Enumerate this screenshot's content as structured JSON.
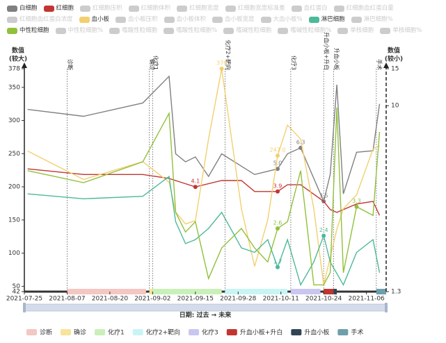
{
  "chart_data": {
    "type": "line",
    "ylabel": [
      "数值",
      "(较大)"
    ],
    "y2label": [
      "数值",
      "(较小)"
    ],
    "xlabel": "日期: 过去 → 未来",
    "xlim": [
      "2021-07-25",
      "2021-11-12"
    ],
    "xticks": [
      "2021-07-25",
      "2021-08-07",
      "2021-08-20",
      "2021-09-02",
      "2021-09-15",
      "2021-09-28",
      "2021-10-11",
      "2021-10-24",
      "2021-11-06"
    ],
    "ylim": [
      42,
      378
    ],
    "yticks": [
      42,
      50,
      100,
      150,
      200,
      250,
      300,
      350,
      378
    ],
    "y2lim": [
      1.3,
      15
    ],
    "y2ticks": [
      1.3,
      10,
      15
    ],
    "y2log": true,
    "series": [
      {
        "name": "白细胞",
        "color": "#808080",
        "selected": true,
        "axis": "y2",
        "x": [
          "2021-07-26",
          "2021-08-12",
          "2021-08-30",
          "2021-09-07",
          "2021-09-09",
          "2021-09-12",
          "2021-09-15",
          "2021-09-19",
          "2021-09-23",
          "2021-10-03",
          "2021-10-10",
          "2021-10-13",
          "2021-10-17",
          "2021-10-24",
          "2021-10-26",
          "2021-10-28",
          "2021-10-30",
          "2021-11-03",
          "2021-11-08",
          "2021-11-10"
        ],
        "values": [
          9.6,
          8.9,
          10.3,
          13.8,
          5.9,
          5.4,
          5.7,
          4.6,
          5.9,
          4.7,
          5.0,
          5.9,
          6.3,
          3.5,
          4.7,
          12.6,
          3.8,
          6.0,
          6.1,
          10.2
        ],
        "value_labels": [
          null,
          null,
          null,
          null,
          null,
          null,
          null,
          null,
          null,
          null,
          "5.0",
          null,
          "6.3",
          "3.5",
          null,
          null,
          null,
          null,
          null,
          null
        ]
      },
      {
        "name": "红细胞",
        "color": "#c23531",
        "selected": true,
        "axis": "y2",
        "x": [
          "2021-07-26",
          "2021-08-12",
          "2021-08-30",
          "2021-09-07",
          "2021-09-15",
          "2021-09-23",
          "2021-09-29",
          "2021-10-03",
          "2021-10-10",
          "2021-10-13",
          "2021-10-17",
          "2021-10-24",
          "2021-10-26",
          "2021-10-28",
          "2021-10-30",
          "2021-11-03",
          "2021-11-08",
          "2021-11-10"
        ],
        "values": [
          5.0,
          4.7,
          4.7,
          4.5,
          4.1,
          4.4,
          4.4,
          3.9,
          3.9,
          4.2,
          4.2,
          3.5,
          3.2,
          3.1,
          3.2,
          3.4,
          3.5,
          3.0
        ],
        "value_labels": [
          null,
          null,
          null,
          null,
          "4.1",
          null,
          null,
          null,
          "3.9",
          null,
          null,
          null,
          null,
          null,
          null,
          null,
          null,
          null
        ]
      },
      {
        "name": "红细胞压积",
        "color": "#cccccc",
        "selected": false
      },
      {
        "name": "红细胞体积",
        "color": "#cccccc",
        "selected": false
      },
      {
        "name": "红细胞宽度",
        "color": "#cccccc",
        "selected": false
      },
      {
        "name": "红细胞宽度标准差",
        "color": "#cccccc",
        "selected": false
      },
      {
        "name": "血红蛋白",
        "color": "#cccccc",
        "selected": false
      },
      {
        "name": "红细胞血红蛋白量",
        "color": "#cccccc",
        "selected": false
      },
      {
        "name": "红细胞血红蛋白浓度",
        "color": "#cccccc",
        "selected": false
      },
      {
        "name": "血小板",
        "color": "#f2cf6f",
        "selected": true,
        "axis": "y",
        "x": [
          "2021-07-26",
          "2021-08-12",
          "2021-08-30",
          "2021-09-07",
          "2021-09-09",
          "2021-09-12",
          "2021-09-15",
          "2021-09-19",
          "2021-09-23",
          "2021-09-29",
          "2021-10-03",
          "2021-10-07",
          "2021-10-10",
          "2021-10-13",
          "2021-10-17",
          "2021-10-21",
          "2021-10-24",
          "2021-10-28",
          "2021-10-30",
          "2021-11-03",
          "2021-11-08",
          "2021-11-10"
        ],
        "values": [
          254,
          211,
          238,
          207,
          162,
          144,
          149,
          272,
          378,
          167,
          80,
          150,
          247,
          293,
          272,
          167,
          52,
          136,
          167,
          188,
          257,
          262
        ],
        "value_labels": [
          null,
          null,
          null,
          null,
          null,
          null,
          null,
          null,
          "378",
          null,
          null,
          null,
          "247.0",
          null,
          null,
          null,
          null,
          null,
          null,
          null,
          null,
          null
        ]
      },
      {
        "name": "血小板压积",
        "color": "#cccccc",
        "selected": false
      },
      {
        "name": "血小板体积",
        "color": "#cccccc",
        "selected": false
      },
      {
        "name": "血小板宽度",
        "color": "#cccccc",
        "selected": false
      },
      {
        "name": "大血小板%",
        "color": "#cccccc",
        "selected": false
      },
      {
        "name": "淋巴细胞",
        "color": "#4cb99a",
        "selected": true,
        "axis": "y2",
        "x": [
          "2021-07-26",
          "2021-08-12",
          "2021-08-30",
          "2021-09-07",
          "2021-09-09",
          "2021-09-12",
          "2021-09-15",
          "2021-09-19",
          "2021-09-23",
          "2021-09-29",
          "2021-10-03",
          "2021-10-07",
          "2021-10-10",
          "2021-10-13",
          "2021-10-17",
          "2021-10-21",
          "2021-10-24",
          "2021-10-26",
          "2021-10-30",
          "2021-11-03",
          "2021-11-08",
          "2021-11-10"
        ],
        "values": [
          3.8,
          3.6,
          3.7,
          4.6,
          2.8,
          2.2,
          2.3,
          2.6,
          3.1,
          2.1,
          2.0,
          2.3,
          1.7,
          2.3,
          1.4,
          1.8,
          2.4,
          1.8,
          1.4,
          2.0,
          2.3,
          1.6
        ],
        "value_labels": [
          null,
          null,
          null,
          null,
          null,
          null,
          null,
          null,
          null,
          null,
          null,
          null,
          "1.7",
          null,
          null,
          null,
          "2.4",
          null,
          null,
          null,
          null,
          null
        ]
      },
      {
        "name": "淋巴细胞%",
        "color": "#cccccc",
        "selected": false
      },
      {
        "name": "中性粒细胞",
        "color": "#91c03b",
        "selected": true,
        "axis": "y2",
        "x": [
          "2021-07-26",
          "2021-08-12",
          "2021-08-30",
          "2021-09-07",
          "2021-09-09",
          "2021-09-12",
          "2021-09-15",
          "2021-09-19",
          "2021-09-23",
          "2021-09-29",
          "2021-10-03",
          "2021-10-07",
          "2021-10-10",
          "2021-10-13",
          "2021-10-17",
          "2021-10-21",
          "2021-10-24",
          "2021-10-26",
          "2021-10-28",
          "2021-10-30",
          "2021-11-03",
          "2021-11-08",
          "2021-11-10"
        ],
        "values": [
          4.9,
          4.3,
          5.4,
          9.2,
          3.1,
          2.5,
          2.8,
          1.5,
          2.1,
          2.6,
          2.1,
          1.8,
          2.6,
          2.8,
          4.9,
          1.4,
          1.4,
          1.6,
          9.8,
          1.6,
          3.3,
          3.0,
          7.5
        ],
        "value_labels": [
          null,
          null,
          null,
          null,
          null,
          null,
          null,
          null,
          null,
          null,
          null,
          null,
          "2.6",
          null,
          null,
          null,
          null,
          null,
          null,
          null,
          "3.3",
          null,
          null
        ]
      },
      {
        "name": "中性粒细胞%",
        "color": "#cccccc",
        "selected": false
      },
      {
        "name": "嗜酸性粒细胞",
        "color": "#cccccc",
        "selected": false
      },
      {
        "name": "嗜酸性粒细胞%",
        "color": "#cccccc",
        "selected": false
      },
      {
        "name": "嗜碱性粒细胞",
        "color": "#cccccc",
        "selected": false
      },
      {
        "name": "嗜碱性粒细胞%",
        "color": "#cccccc",
        "selected": false
      },
      {
        "name": "单核细胞",
        "color": "#cccccc",
        "selected": false
      },
      {
        "name": "单核细胞%",
        "color": "#cccccc",
        "selected": false
      }
    ],
    "events": [
      {
        "name": "诊断",
        "start": "2021-08-07",
        "end": "2021-08-31",
        "color": "#f4c7c3"
      },
      {
        "name": "确诊",
        "start": "2021-09-01",
        "end": "2021-09-02",
        "color": "#f7e49a"
      },
      {
        "name": "化疗1",
        "start": "2021-09-02",
        "end": "2021-09-23",
        "color": "#c9f0b9"
      },
      {
        "name": "化疗2+靶向",
        "start": "2021-09-24",
        "end": "2021-10-13",
        "color": "#c9f4f4"
      },
      {
        "name": "化疗3",
        "start": "2021-10-14",
        "end": "2021-10-23",
        "color": "#c9c6f1"
      },
      {
        "name": "升血小板+升白",
        "start": "2021-10-24",
        "end": "2021-10-27",
        "color": "#c23531"
      },
      {
        "name": "升血小板",
        "start": "2021-10-27",
        "end": "2021-10-28",
        "color": "#2f4554"
      },
      {
        "name": "手术",
        "start": "2021-11-09",
        "end": "2021-11-12",
        "color": "#6e9fac"
      }
    ]
  }
}
